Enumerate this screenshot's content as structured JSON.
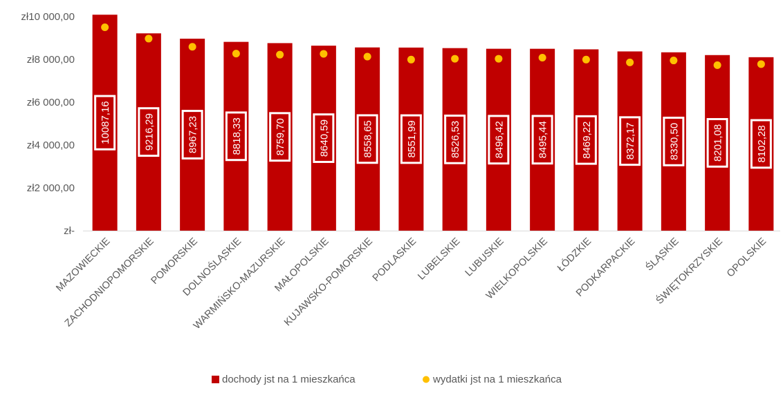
{
  "colors": {
    "bar": "#C00000",
    "marker": "#FFC000",
    "label_border": "#FFFFFF",
    "text": "#595959",
    "axis": "#D9D9D9"
  },
  "chart_data": {
    "type": "bar",
    "categories": [
      "MAZOWIECKIE",
      "ZACHODNIOPOMORSKIE",
      "POMORSKIE",
      "DOLNOŚLĄSKIE",
      "WARMIŃSKO-MAZURSKIE",
      "MAŁOPOLSKIE",
      "KUJAWSKO-POMORSKIE",
      "PODLASKIE",
      "LUBELSKIE",
      "LUBUSKIE",
      "WIELKOPOLSKIE",
      "ŁÓDZKIE",
      "PODKARPACKIE",
      "ŚLĄSKIE",
      "ŚWIĘTOKRZYSKIE",
      "OPOLSKIE"
    ],
    "series": [
      {
        "name": "dochody jst na 1 mieszkańca",
        "type": "bar",
        "values": [
          10087.16,
          9216.29,
          8967.23,
          8818.33,
          8759.7,
          8640.59,
          8558.65,
          8551.99,
          8526.53,
          8496.42,
          8495.44,
          8469.22,
          8372.17,
          8330.5,
          8201.08,
          8102.28
        ],
        "data_labels": [
          "10087,16",
          "9216,29",
          "8967,23",
          "8818,33",
          "8759,70",
          "8640,59",
          "8558,65",
          "8551,99",
          "8526,53",
          "8496,42",
          "8495,44",
          "8469,22",
          "8372,17",
          "8330,50",
          "8201,08",
          "8102,28"
        ]
      },
      {
        "name": "wydatki jst na 1 mieszkańca",
        "type": "scatter",
        "values": [
          9500,
          8970,
          8590,
          8270,
          8220,
          8260,
          8130,
          7990,
          8030,
          8030,
          8080,
          7990,
          7860,
          7950,
          7730,
          7780
        ]
      }
    ],
    "yticks": [
      0,
      2000,
      4000,
      6000,
      8000,
      10000
    ],
    "ytick_labels": [
      "zł-",
      "zł2 000,00",
      "zł4 000,00",
      "zł6 000,00",
      "zł8 000,00",
      "zł10 000,00"
    ],
    "ylim": [
      0,
      10000
    ],
    "legend": "bottom",
    "grid": false
  }
}
